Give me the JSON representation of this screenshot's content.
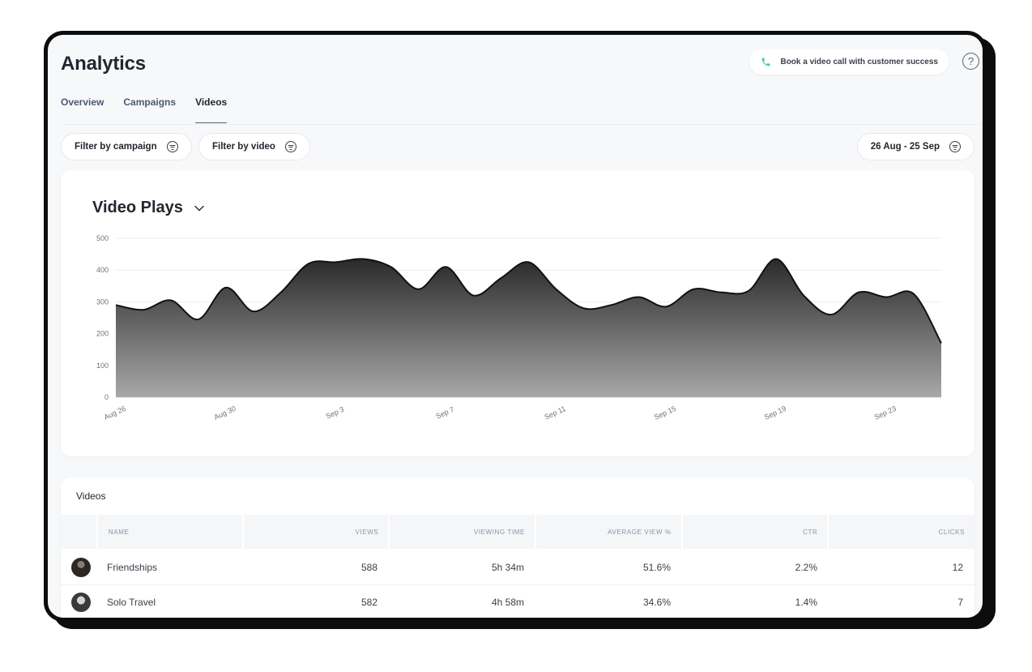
{
  "page": {
    "title": "Analytics",
    "call_button": "Book a video call with customer success",
    "help": "?"
  },
  "tabs": [
    {
      "label": "Overview",
      "active": false
    },
    {
      "label": "Campaigns",
      "active": false
    },
    {
      "label": "Videos",
      "active": true
    }
  ],
  "filters": {
    "campaign": "Filter by campaign",
    "video": "Filter by video",
    "date_range": "26 Aug - 25 Sep"
  },
  "chart_title": "Video Plays",
  "chart_data": {
    "type": "area",
    "title": "Video Plays",
    "xlabel": "",
    "ylabel": "",
    "ylim": [
      0,
      500
    ],
    "yticks": [
      0,
      100,
      200,
      300,
      400,
      500
    ],
    "xticks": [
      "Aug 26",
      "Aug 30",
      "Sep 3",
      "Sep 7",
      "Sep 11",
      "Sep 15",
      "Sep 19",
      "Sep 23"
    ],
    "x": [
      "Aug 26",
      "Aug 27",
      "Aug 28",
      "Aug 29",
      "Aug 30",
      "Aug 31",
      "Sep 1",
      "Sep 2",
      "Sep 3",
      "Sep 4",
      "Sep 5",
      "Sep 6",
      "Sep 7",
      "Sep 8",
      "Sep 9",
      "Sep 10",
      "Sep 11",
      "Sep 12",
      "Sep 13",
      "Sep 14",
      "Sep 15",
      "Sep 16",
      "Sep 17",
      "Sep 18",
      "Sep 19",
      "Sep 20",
      "Sep 21",
      "Sep 22",
      "Sep 23",
      "Sep 24",
      "Sep 25"
    ],
    "series": [
      {
        "values": [
          290,
          275,
          305,
          245,
          345,
          270,
          330,
          420,
          425,
          435,
          410,
          340,
          410,
          320,
          375,
          425,
          340,
          280,
          290,
          315,
          285,
          340,
          330,
          335,
          435,
          320,
          260,
          330,
          315,
          325,
          170
        ]
      }
    ],
    "grid": true,
    "legend": "none"
  },
  "table": {
    "title": "Videos",
    "columns": [
      "NAME",
      "VIEWS",
      "VIEWING TIME",
      "AVERAGE VIEW %",
      "CTR",
      "CLICKS"
    ],
    "rows": [
      {
        "name": "Friendships",
        "views": "588",
        "viewing_time": "5h 34m",
        "avg_view": "51.6%",
        "ctr": "2.2%",
        "clicks": "12"
      },
      {
        "name": "Solo Travel",
        "views": "582",
        "viewing_time": "4h 58m",
        "avg_view": "34.6%",
        "ctr": "1.4%",
        "clicks": "7"
      }
    ]
  },
  "colors": {
    "accent_phone": "#3ecf8e",
    "area_top": "#2a2a2a",
    "area_bottom": "#a8a8a8",
    "line": "#111111",
    "background": "#f7f8fa"
  }
}
